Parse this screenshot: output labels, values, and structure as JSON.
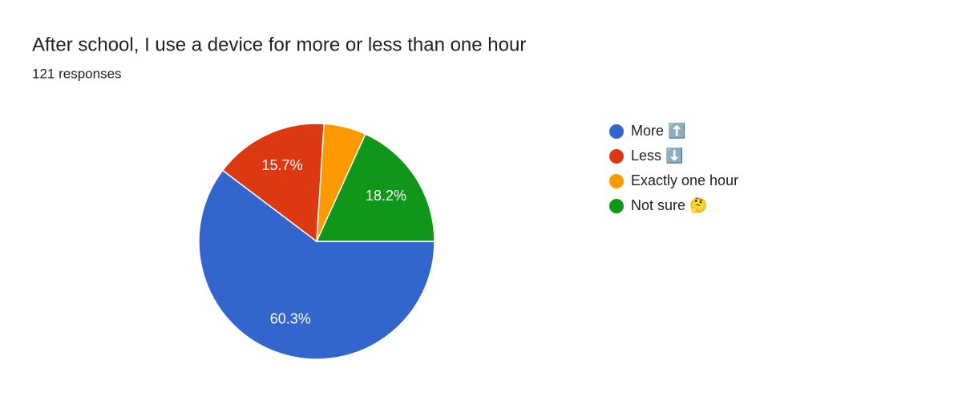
{
  "chart_data": {
    "type": "pie",
    "title": "After school, I use a device for more or less than one hour",
    "subtitle": "121 responses",
    "categories": [
      "More ⬆️",
      "Less ⬇️",
      "Exactly one hour",
      "Not sure 🤔"
    ],
    "values": [
      60.3,
      15.7,
      5.8,
      18.2
    ],
    "value_labels": [
      "60.3%",
      "15.7%",
      null,
      "18.2%"
    ],
    "colors": [
      "#3366cc",
      "#dc3912",
      "#ff9900",
      "#109618"
    ],
    "legend": "right"
  }
}
